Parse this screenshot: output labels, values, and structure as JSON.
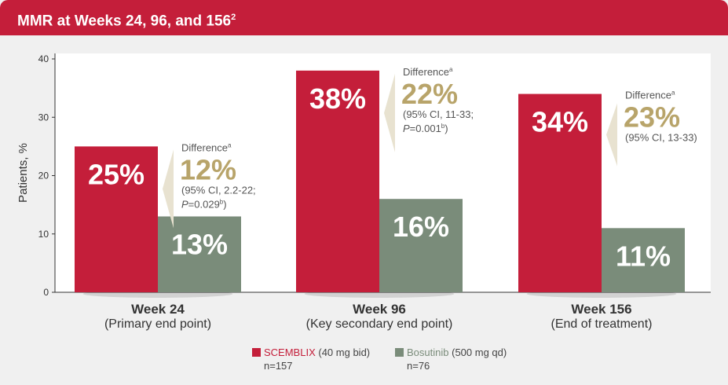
{
  "header": {
    "title": "MMR at Weeks 24, 96, and 156",
    "title_sup": "2"
  },
  "chart_data": {
    "type": "bar",
    "ylabel": "Patients, %",
    "ylim": [
      0,
      40
    ],
    "yticks": [
      0,
      10,
      20,
      30,
      40
    ],
    "grid": false,
    "categories": [
      {
        "label": "Week 24",
        "sub": "(Primary end point)"
      },
      {
        "label": "Week 96",
        "sub": "(Key secondary end point)"
      },
      {
        "label": "Week 156",
        "sub": "(End of treatment)"
      }
    ],
    "series": [
      {
        "name": "SCEMBLIX",
        "values": [
          25,
          38,
          34
        ],
        "labels": [
          "25%",
          "38%",
          "34%"
        ],
        "color": "#c41e3a"
      },
      {
        "name": "Bosutinib",
        "values": [
          13,
          16,
          11
        ],
        "labels": [
          "13%",
          "16%",
          "11%"
        ],
        "color": "#7a8c7a"
      }
    ],
    "annotations": [
      {
        "title": "Difference",
        "sup": "a",
        "value": "12%",
        "ci": "(95% CI, 2.2-22;",
        "p": "P",
        "p_rest": "=0.029",
        "p_sup": "b",
        "p_close": ")"
      },
      {
        "title": "Difference",
        "sup": "a",
        "value": "22%",
        "ci": "(95% CI, 11-33;",
        "p": "P",
        "p_rest": "=0.001",
        "p_sup": "b",
        "p_close": ")"
      },
      {
        "title": "Difference",
        "sup": "a",
        "value": "23%",
        "ci": "(95% CI, 13-33)"
      }
    ],
    "legend": [
      {
        "name": "SCEMBLIX",
        "detail": "(40 mg bid)",
        "n": "n=157",
        "color": "#c41e3a"
      },
      {
        "name": "Bosutinib",
        "detail": "(500 mg qd)",
        "n": "n=76",
        "color": "#7a8c7a"
      }
    ],
    "colors": {
      "accent": "#b8a46a",
      "arrow": "#e8e2d0"
    }
  }
}
